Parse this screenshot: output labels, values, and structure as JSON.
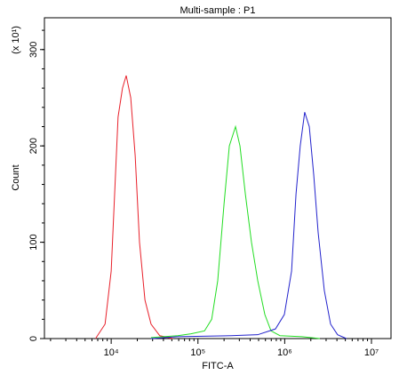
{
  "chart_data": {
    "type": "line",
    "title": "Multi-sample : P1",
    "xlabel": "FITC-A",
    "ylabel": "Count",
    "yunit": "(x 10¹)",
    "xscale": "log",
    "xlim": [
      1700,
      16800000
    ],
    "ylim": [
      0,
      333
    ],
    "xticks": [
      {
        "value": 10000,
        "label": "10⁴"
      },
      {
        "value": 100000,
        "label": "10⁵"
      },
      {
        "value": 1000000,
        "label": "10⁶"
      },
      {
        "value": 10000000,
        "label": "10⁷"
      }
    ],
    "yticks": [
      0,
      100,
      200,
      300
    ],
    "series": [
      {
        "color": "#e8202a",
        "x": [
          6600,
          8500,
          10000,
          12000,
          13500,
          14900,
          16800,
          18900,
          21200,
          24500,
          28800,
          36300,
          51300
        ],
        "values": [
          0,
          15,
          70,
          230,
          260,
          273,
          250,
          190,
          100,
          40,
          15,
          3,
          0
        ]
      },
      {
        "color": "#22dd22",
        "x": [
          28800,
          58600,
          83400,
          119000,
          144000,
          169000,
          200000,
          230000,
          271000,
          305000,
          352000,
          414000,
          489000,
          590000,
          695000,
          881000,
          1580000,
          2540000
        ],
        "values": [
          1,
          3,
          5,
          8,
          20,
          60,
          140,
          200,
          220,
          200,
          150,
          100,
          60,
          25,
          8,
          3,
          2,
          0
        ]
      },
      {
        "color": "#2222cc",
        "x": [
          28800,
          58600,
          241000,
          489000,
          783000,
          991000,
          1200000,
          1350000,
          1510000,
          1700000,
          1920000,
          2160000,
          2430000,
          2860000,
          3380000,
          4070000,
          5150000
        ],
        "values": [
          0,
          2,
          3,
          4,
          10,
          25,
          70,
          150,
          200,
          235,
          220,
          170,
          110,
          50,
          15,
          4,
          0
        ]
      }
    ]
  }
}
